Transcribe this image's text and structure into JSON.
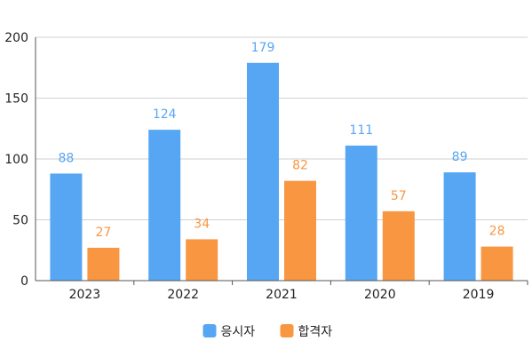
{
  "chart_data": {
    "type": "bar",
    "categories": [
      "2023",
      "2022",
      "2021",
      "2020",
      "2019"
    ],
    "series": [
      {
        "name": "응시자",
        "color": "#57a6f4",
        "values": [
          88,
          124,
          179,
          111,
          89
        ]
      },
      {
        "name": "합격자",
        "color": "#f99641",
        "values": [
          27,
          34,
          82,
          57,
          28
        ]
      }
    ],
    "ylim": [
      0,
      200
    ],
    "yticks": [
      0,
      50,
      100,
      150,
      200
    ],
    "grid": true,
    "legend_position": "bottom-center",
    "data_labels": true
  }
}
